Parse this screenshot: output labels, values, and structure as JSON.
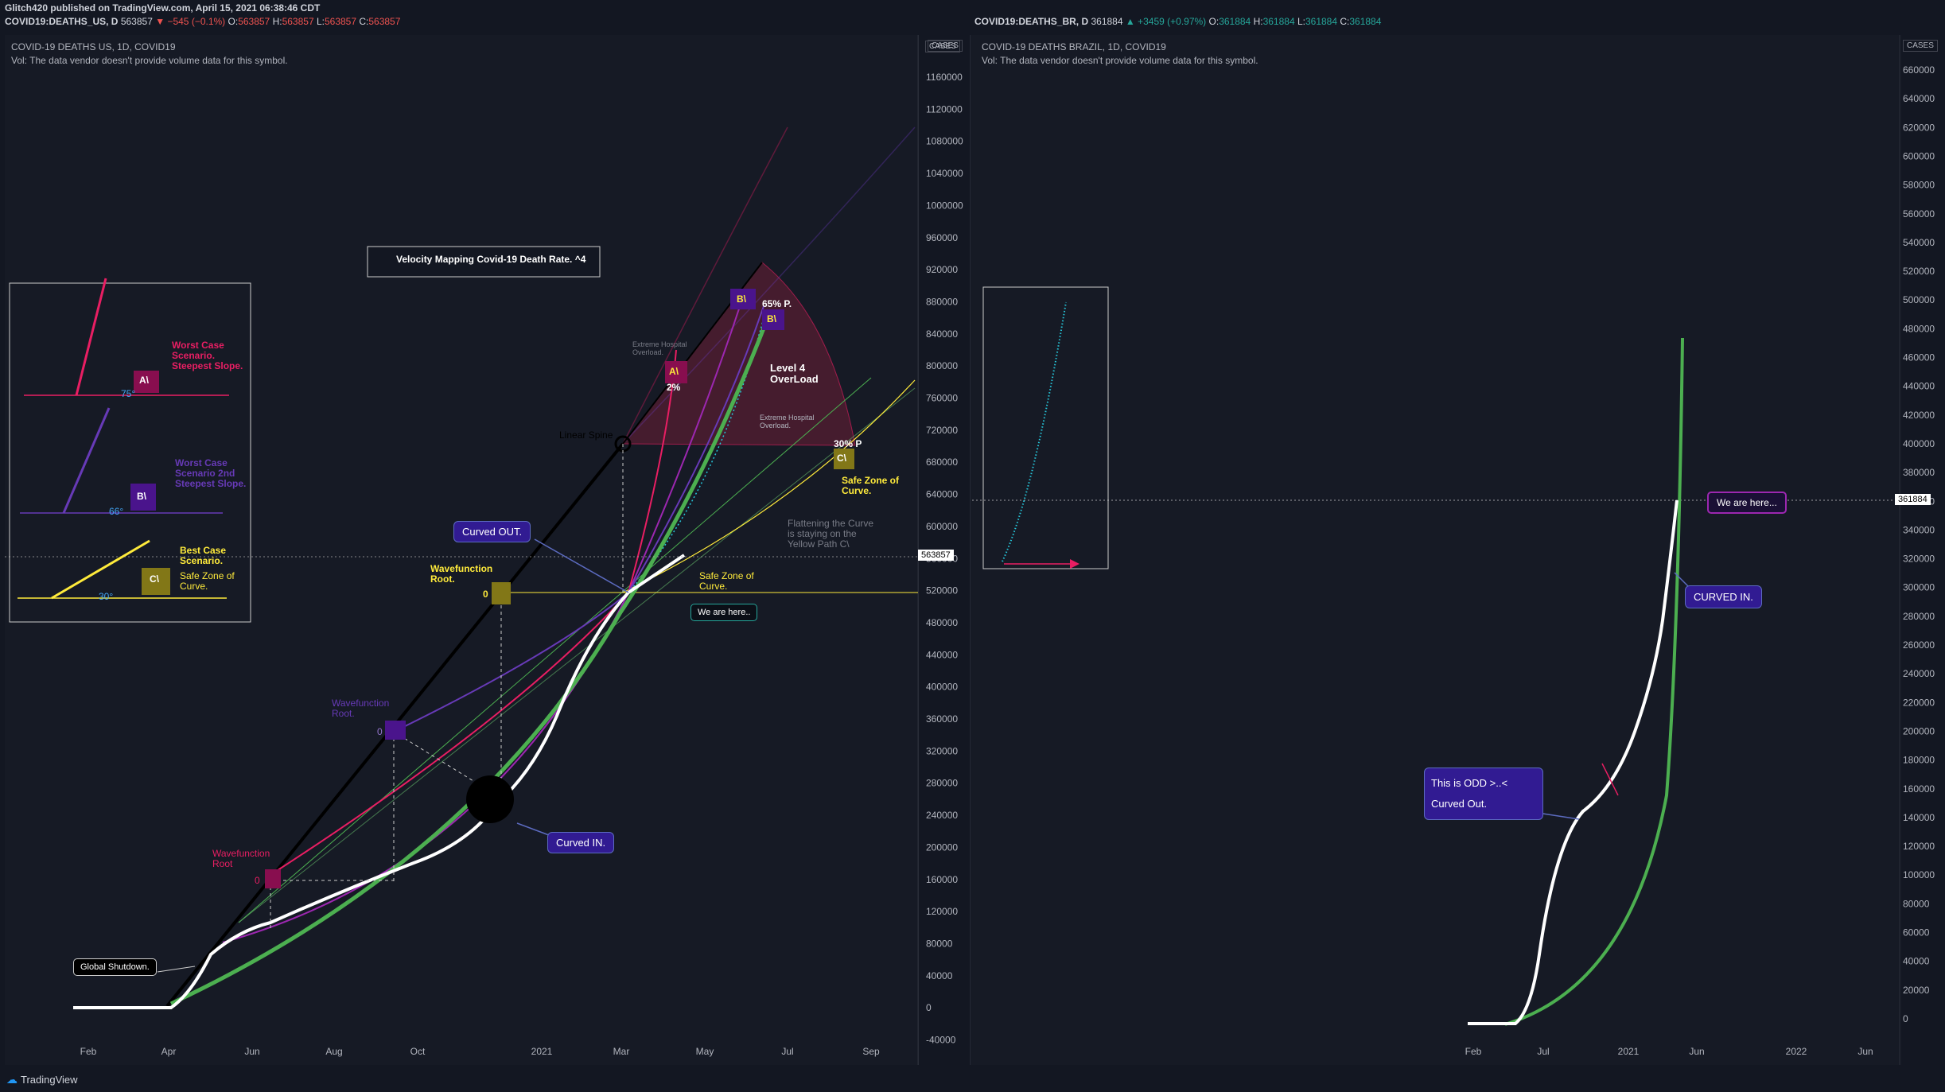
{
  "header": {
    "publisher": "Glitch420 published on TradingView.com, April 15, 2021 06:38:46 CDT",
    "left_symbol": "COVID19:DEATHS_US, D",
    "left_price": "563857",
    "left_change": "−545 (−0.1%)",
    "left_ohlc": {
      "o": "563857",
      "h": "563857",
      "l": "563857",
      "c": "563857"
    },
    "right_symbol": "COVID19:DEATHS_BR, D",
    "right_price": "361884",
    "right_change": "+3459 (+0.97%)",
    "right_ohlc": {
      "o": "361884",
      "h": "361884",
      "l": "361884",
      "c": "361884"
    }
  },
  "left_pane": {
    "title": "COVID-19 DEATHS US, 1D, COVID19",
    "vol_note": "Vol: The data vendor doesn't provide volume data for this symbol.",
    "scale_badge": "CASES",
    "last_price_label": "563857",
    "y_ticks": [
      "1160000",
      "1120000",
      "1080000",
      "1040000",
      "1000000",
      "960000",
      "920000",
      "880000",
      "840000",
      "800000",
      "760000",
      "720000",
      "680000",
      "640000",
      "600000",
      "560000",
      "520000",
      "480000",
      "440000",
      "400000",
      "360000",
      "320000",
      "280000",
      "240000",
      "200000",
      "160000",
      "120000",
      "80000",
      "40000",
      "0",
      "-40000"
    ],
    "x_ticks": [
      "Feb",
      "Apr",
      "Jun",
      "Aug",
      "Oct",
      "2021",
      "Mar",
      "May",
      "Jul",
      "Sep"
    ],
    "annotations": {
      "velocity_title": "Velocity Mapping Covid-19 Death Rate. ^4",
      "worst": "Worst Case Scenario. Steepest Slope.",
      "worst2": "Worst Case Scenario 2nd Steepest Slope.",
      "best": "Best Case Scenario.",
      "safe_zone": "Safe Zone of Curve.",
      "deg75": "75°",
      "deg66": "66°",
      "deg30": "30°",
      "tag_a": "A\\",
      "tag_b": "B\\",
      "tag_c": "C\\",
      "wave_root_red": "Wavefunction Root",
      "wave_root_purple": "Wavefunction Root.",
      "wave_root_yellow": "Wavefunction Root.",
      "zero": "0",
      "linear_spine": "Linear Spine",
      "ext_overload_1": "Extreme Hospital Overload.",
      "ext_overload_2": "Extreme Hospital Overload.",
      "level4": "Level 4 OverLoad",
      "p65": "65% P.",
      "p2": "2%",
      "p30": "30% P",
      "safe_zone_right": "Safe Zone of Curve.",
      "curved_out": "Curved OUT.",
      "curved_in": "Curved IN.",
      "flattening": "Flattening the Curve is staying on the Yellow Path C\\",
      "we_are_here": "We are here..",
      "global_shutdown": "Global Shutdown."
    }
  },
  "right_pane": {
    "title": "COVID-19 DEATHS BRAZIL, 1D, COVID19",
    "vol_note": "Vol: The data vendor doesn't provide volume data for this symbol.",
    "scale_badge": "CASES",
    "last_price_label": "361884",
    "y_ticks": [
      "660000",
      "640000",
      "620000",
      "600000",
      "580000",
      "560000",
      "540000",
      "520000",
      "500000",
      "480000",
      "460000",
      "440000",
      "420000",
      "400000",
      "380000",
      "360000",
      "340000",
      "320000",
      "300000",
      "280000",
      "260000",
      "240000",
      "220000",
      "200000",
      "180000",
      "160000",
      "140000",
      "120000",
      "100000",
      "80000",
      "60000",
      "40000",
      "20000",
      "0"
    ],
    "x_ticks": [
      "Feb",
      "Jul",
      "2021",
      "Jun",
      "2022",
      "Jun"
    ],
    "annotations": {
      "we_are_here": "We are here...",
      "curved_in": "CURVED IN.",
      "odd_line1": "This is ODD >..<",
      "odd_line2": "Curved Out."
    }
  },
  "footer": {
    "brand": "TradingView"
  },
  "colors": {
    "bg": "#131722",
    "green": "#4caf50",
    "white": "#ffffff",
    "red": "#e91e63",
    "purple": "#673ab7",
    "yellow": "#ffeb3b",
    "teal": "#26c6da"
  }
}
